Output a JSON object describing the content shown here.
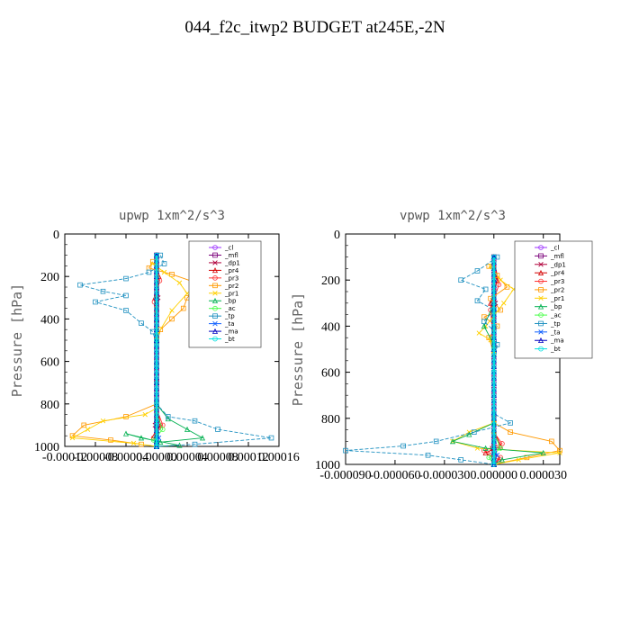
{
  "page": {
    "title": "044_f2c_itwp2  BUDGET at245E,-2N"
  },
  "legend_entries": [
    "_cl",
    "_mfl",
    "_dp1",
    "_pr4",
    "_pr3",
    "_pr2",
    "_pr1",
    "_bp",
    "_ac",
    "_tp",
    "_ta",
    "_ma",
    "_bt"
  ],
  "series_colors": {
    "_cl": "#9b30ff",
    "_mfl": "#7a007a",
    "_dp1": "#b0003a",
    "_pr4": "#d40000",
    "_pr3": "#ff3030",
    "_pr2": "#ff9900",
    "_pr1": "#ffd000",
    "_bp": "#00b050",
    "_ac": "#44ff44",
    "_tp": "#1e90c0",
    "_ta": "#1060ff",
    "_ma": "#0000c0",
    "_bt": "#00e0e0"
  },
  "chart_data": [
    {
      "type": "line",
      "title": "upwp   1xm^2/s^3",
      "ylabel": "Pressure [hPa]",
      "xlabel": "",
      "xlim": [
        -0.00012,
        0.00016
      ],
      "ylim": [
        1000,
        0
      ],
      "x_ticks": [
        "-0.00012",
        "-0.00008",
        "-0.00004",
        "0.00000",
        "0.00004",
        "0.00008",
        "0.00012",
        "0.00016"
      ],
      "y_ticks": [
        "0",
        "200",
        "400",
        "600",
        "800",
        "1000"
      ],
      "legend_position": "top-right",
      "series": [
        {
          "name": "_cl",
          "points": [
            [
              0,
              100
            ],
            [
              0,
              300
            ],
            [
              0,
              500
            ],
            [
              0,
              700
            ],
            [
              0,
              900
            ],
            [
              0,
              1000
            ]
          ]
        },
        {
          "name": "_mfl",
          "points": [
            [
              0,
              100
            ],
            [
              0,
              300
            ],
            [
              0,
              500
            ],
            [
              0,
              700
            ],
            [
              0,
              900
            ],
            [
              0,
              1000
            ]
          ]
        },
        {
          "name": "_dp1",
          "points": [
            [
              0,
              100
            ],
            [
              2e-06,
              300
            ],
            [
              0,
              500
            ],
            [
              0,
              700
            ],
            [
              -2e-06,
              900
            ],
            [
              0,
              1000
            ]
          ]
        },
        {
          "name": "_pr4",
          "points": [
            [
              0,
              100
            ],
            [
              3e-06,
              200
            ],
            [
              -2e-06,
              300
            ],
            [
              0,
              500
            ],
            [
              0,
              800
            ],
            [
              5e-06,
              900
            ],
            [
              -3e-06,
              950
            ],
            [
              0,
              1000
            ]
          ]
        },
        {
          "name": "_pr3",
          "points": [
            [
              0,
              100
            ],
            [
              4e-06,
              220
            ],
            [
              -3e-06,
              320
            ],
            [
              0,
              500
            ],
            [
              0,
              820
            ],
            [
              8e-06,
              900
            ],
            [
              -4e-06,
              960
            ],
            [
              0,
              1000
            ]
          ]
        },
        {
          "name": "_pr2",
          "points": [
            [
              -5e-06,
              130
            ],
            [
              -1e-05,
              160
            ],
            [
              2e-05,
              190
            ],
            [
              6e-05,
              240
            ],
            [
              4e-05,
              300
            ],
            [
              3.5e-05,
              350
            ],
            [
              2e-05,
              400
            ],
            [
              5e-06,
              450
            ],
            [
              0,
              520
            ],
            [
              0,
              800
            ],
            [
              -4e-05,
              860
            ],
            [
              -9.5e-05,
              900
            ],
            [
              -0.00011,
              950
            ],
            [
              -6e-05,
              970
            ],
            [
              -2e-05,
              990
            ]
          ]
        },
        {
          "name": "_pr1",
          "points": [
            [
              -5e-06,
              140
            ],
            [
              1e-05,
              180
            ],
            [
              3e-05,
              230
            ],
            [
              4e-05,
              280
            ],
            [
              2e-05,
              360
            ],
            [
              0,
              480
            ],
            [
              0,
              820
            ],
            [
              -1.5e-05,
              850
            ],
            [
              -7e-05,
              880
            ],
            [
              -9e-05,
              920
            ],
            [
              -0.00011,
              960
            ],
            [
              -3e-05,
              985
            ],
            [
              0,
              1000
            ]
          ]
        },
        {
          "name": "_bp",
          "points": [
            [
              0,
              100
            ],
            [
              0,
              400
            ],
            [
              0,
              800
            ],
            [
              1.5e-05,
              870
            ],
            [
              4e-05,
              920
            ],
            [
              6e-05,
              960
            ],
            [
              5e-06,
              980
            ],
            [
              -4e-05,
              940
            ],
            [
              -2e-05,
              960
            ],
            [
              3e-05,
              995
            ],
            [
              0,
              1000
            ]
          ]
        },
        {
          "name": "_ac",
          "points": [
            [
              0,
              100
            ],
            [
              0,
              500
            ],
            [
              0,
              850
            ],
            [
              8e-06,
              920
            ],
            [
              -4e-06,
              970
            ],
            [
              0,
              1000
            ]
          ]
        },
        {
          "name": "_tp",
          "points": [
            [
              5e-06,
              100
            ],
            [
              1e-05,
              140
            ],
            [
              -1e-05,
              180
            ],
            [
              -4e-05,
              210
            ],
            [
              -0.0001,
              240
            ],
            [
              -7e-05,
              270
            ],
            [
              -4e-05,
              290
            ],
            [
              -8e-05,
              320
            ],
            [
              -4e-05,
              360
            ],
            [
              -2e-05,
              420
            ],
            [
              -5e-06,
              460
            ],
            [
              0,
              520
            ],
            [
              0,
              620
            ],
            [
              0,
              800
            ],
            [
              1.5e-05,
              860
            ],
            [
              5e-05,
              880
            ],
            [
              8e-05,
              920
            ],
            [
              0.00015,
              960
            ],
            [
              5e-05,
              990
            ],
            [
              0,
              1000
            ]
          ]
        },
        {
          "name": "_ta",
          "points": [
            [
              0,
              100
            ],
            [
              0,
              400
            ],
            [
              0,
              900
            ],
            [
              3e-06,
              960
            ],
            [
              0,
              1000
            ]
          ]
        },
        {
          "name": "_ma",
          "points": [
            [
              0,
              100
            ],
            [
              0,
              500
            ],
            [
              0,
              1000
            ]
          ]
        },
        {
          "name": "_bt",
          "points": [
            [
              0,
              100
            ],
            [
              0,
              500
            ],
            [
              0,
              1000
            ]
          ]
        }
      ]
    },
    {
      "type": "line",
      "title": "vpwp   1xm^2/s^3",
      "ylabel": "Pressure [hPa]",
      "xlabel": "",
      "xlim": [
        -9e-05,
        4e-05
      ],
      "ylim": [
        1000,
        0
      ],
      "x_ticks": [
        "-0.000090",
        "-0.000060",
        "-0.000030",
        "0.000000",
        "0.000030"
      ],
      "y_ticks": [
        "0",
        "200",
        "400",
        "600",
        "800",
        "1000"
      ],
      "legend_position": "top-right",
      "series": [
        {
          "name": "_cl",
          "points": [
            [
              0,
              100
            ],
            [
              0,
              300
            ],
            [
              0,
              500
            ],
            [
              0,
              700
            ],
            [
              0,
              900
            ],
            [
              0,
              1000
            ]
          ]
        },
        {
          "name": "_mfl",
          "points": [
            [
              0,
              100
            ],
            [
              0,
              300
            ],
            [
              0,
              500
            ],
            [
              0,
              700
            ],
            [
              0,
              900
            ],
            [
              0,
              1000
            ]
          ]
        },
        {
          "name": "_dp1",
          "points": [
            [
              0,
              100
            ],
            [
              1e-06,
              300
            ],
            [
              0,
              500
            ],
            [
              0,
              800
            ],
            [
              -1e-06,
              930
            ],
            [
              0,
              1000
            ]
          ]
        },
        {
          "name": "_pr4",
          "points": [
            [
              0,
              100
            ],
            [
              2e-06,
              200
            ],
            [
              -2e-06,
              300
            ],
            [
              0,
              500
            ],
            [
              0,
              850
            ],
            [
              4e-06,
              920
            ],
            [
              -5e-06,
              950
            ],
            [
              3e-06,
              980
            ],
            [
              0,
              1000
            ]
          ]
        },
        {
          "name": "_pr3",
          "points": [
            [
              0,
              100
            ],
            [
              3e-06,
              220
            ],
            [
              -2e-06,
              330
            ],
            [
              0,
              500
            ],
            [
              0,
              860
            ],
            [
              5e-06,
              910
            ],
            [
              -6e-06,
              940
            ],
            [
              4e-06,
              970
            ],
            [
              0,
              1000
            ]
          ]
        },
        {
          "name": "_pr2",
          "points": [
            [
              -3e-06,
              140
            ],
            [
              2e-06,
              180
            ],
            [
              8e-06,
              230
            ],
            [
              -2e-06,
              280
            ],
            [
              4e-06,
              330
            ],
            [
              -6e-06,
              360
            ],
            [
              2e-06,
              400
            ],
            [
              -3e-06,
              450
            ],
            [
              0,
              520
            ],
            [
              0,
              820
            ],
            [
              1e-05,
              860
            ],
            [
              3.5e-05,
              900
            ],
            [
              4e-05,
              940
            ],
            [
              2e-05,
              970
            ],
            [
              0,
              1000
            ]
          ]
        },
        {
          "name": "_pr1",
          "points": [
            [
              -2e-06,
              140
            ],
            [
              4e-06,
              200
            ],
            [
              1.2e-05,
              240
            ],
            [
              6e-06,
              300
            ],
            [
              -5e-06,
              400
            ],
            [
              -9e-06,
              430
            ],
            [
              -2e-06,
              460
            ],
            [
              0,
              520
            ],
            [
              0,
              820
            ],
            [
              -1.5e-05,
              860
            ],
            [
              -2.5e-05,
              900
            ],
            [
              -1e-05,
              930
            ],
            [
              4e-05,
              950
            ],
            [
              1.5e-05,
              980
            ],
            [
              0,
              1000
            ]
          ]
        },
        {
          "name": "_bp",
          "points": [
            [
              0,
              100
            ],
            [
              0,
              300
            ],
            [
              -6e-06,
              400
            ],
            [
              0,
              480
            ],
            [
              0,
              820
            ],
            [
              -1.5e-05,
              870
            ],
            [
              -2.5e-05,
              900
            ],
            [
              -5e-06,
              930
            ],
            [
              3e-05,
              950
            ],
            [
              5e-06,
              980
            ],
            [
              0,
              1000
            ]
          ]
        },
        {
          "name": "_ac",
          "points": [
            [
              0,
              100
            ],
            [
              0,
              500
            ],
            [
              0,
              860
            ],
            [
              4e-06,
              930
            ],
            [
              -3e-06,
              970
            ],
            [
              0,
              1000
            ]
          ]
        },
        {
          "name": "_tp",
          "points": [
            [
              2e-06,
              100
            ],
            [
              -1e-05,
              160
            ],
            [
              -2e-05,
              200
            ],
            [
              -5e-06,
              240
            ],
            [
              -1e-05,
              290
            ],
            [
              0,
              330
            ],
            [
              -6e-06,
              380
            ],
            [
              0,
              420
            ],
            [
              2e-06,
              480
            ],
            [
              0,
              600
            ],
            [
              0,
              780
            ],
            [
              1e-05,
              820
            ],
            [
              -1.2e-05,
              860
            ],
            [
              -3.5e-05,
              900
            ],
            [
              -5.5e-05,
              920
            ],
            [
              -9e-05,
              940
            ],
            [
              -4e-05,
              960
            ],
            [
              -2e-05,
              980
            ],
            [
              0,
              1000
            ]
          ]
        },
        {
          "name": "_ta",
          "points": [
            [
              0,
              100
            ],
            [
              0,
              400
            ],
            [
              0,
              900
            ],
            [
              2e-06,
              960
            ],
            [
              0,
              1000
            ]
          ]
        },
        {
          "name": "_ma",
          "points": [
            [
              0,
              100
            ],
            [
              0,
              500
            ],
            [
              0,
              1000
            ]
          ]
        },
        {
          "name": "_bt",
          "points": [
            [
              0,
              100
            ],
            [
              0,
              500
            ],
            [
              0,
              1000
            ]
          ]
        }
      ]
    }
  ]
}
